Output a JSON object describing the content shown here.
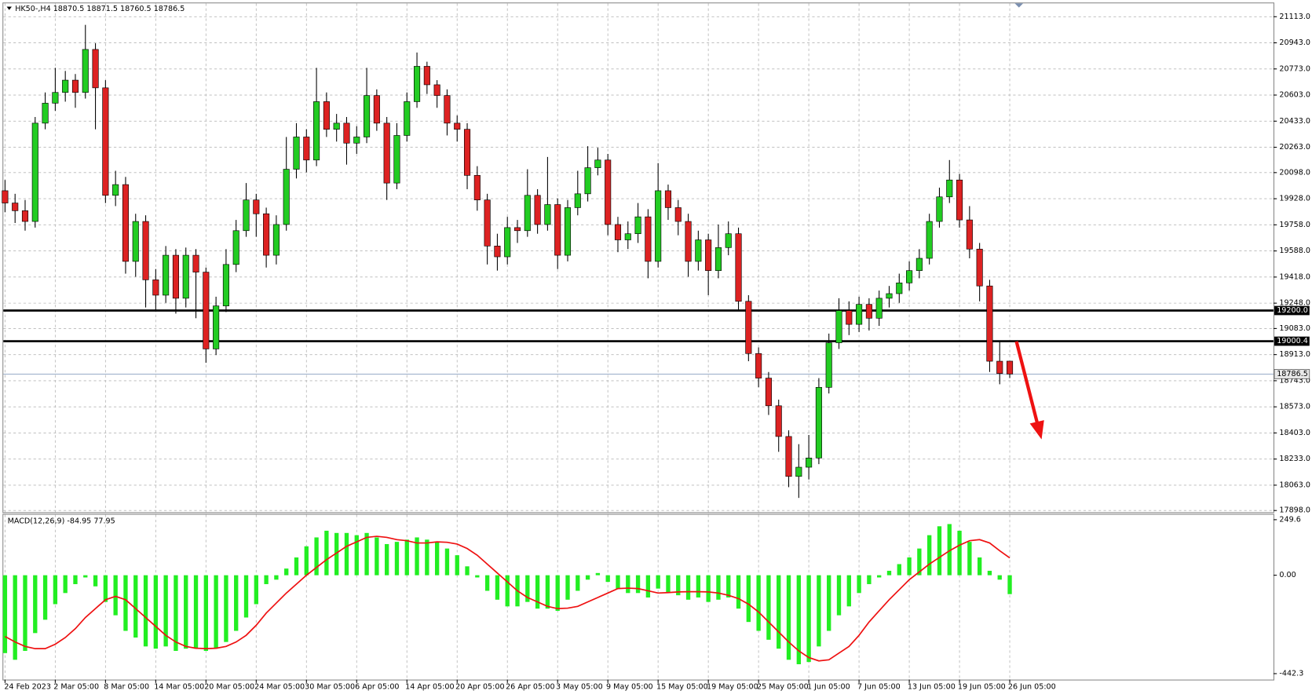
{
  "chart_data": [
    {
      "type": "candlestick",
      "title": "HK50-,H4  18870.5 18871.5 18760.5 18786.5",
      "categories": [
        "24 Feb 2023",
        null,
        null,
        null,
        null,
        "2 Mar 05:00",
        null,
        null,
        null,
        null,
        "8 Mar 05:00",
        null,
        null,
        null,
        null,
        "14 Mar 05:00",
        null,
        null,
        null,
        null,
        "20 Mar 05:00",
        null,
        null,
        null,
        null,
        "24 Mar 05:00",
        null,
        null,
        null,
        null,
        "30 Mar 05:00",
        null,
        null,
        null,
        null,
        "6 Apr 05:00",
        null,
        null,
        null,
        null,
        "14 Apr 05:00",
        null,
        null,
        null,
        null,
        "20 Apr 05:00",
        null,
        null,
        null,
        null,
        "26 Apr 05:00",
        null,
        null,
        null,
        null,
        "3 May 05:00",
        null,
        null,
        null,
        null,
        "9 May 05:00",
        null,
        null,
        null,
        null,
        "15 May 05:00",
        null,
        null,
        null,
        null,
        "19 May 05:00",
        null,
        null,
        null,
        null,
        "25 May 05:00",
        null,
        null,
        null,
        null,
        "1 Jun 05:00",
        null,
        null,
        null,
        null,
        "7 Jun 05:00",
        null,
        null,
        null,
        null,
        "13 Jun 05:00",
        null,
        null,
        null,
        null,
        "19 Jun 05:00",
        null,
        null,
        null,
        null,
        "26 Jun 05:00"
      ],
      "open": [
        19980,
        19900,
        19850,
        19780,
        20420,
        20550,
        20620,
        20700,
        20620,
        20900,
        20650,
        19950,
        20020,
        19520,
        19780,
        19400,
        19300,
        19560,
        19280,
        19560,
        19450,
        18950,
        19230,
        19500,
        19720,
        19920,
        19830,
        19560,
        19760,
        20120,
        20330,
        20180,
        20560,
        20380,
        20420,
        20290,
        20330,
        20600,
        20420,
        20030,
        20340,
        20560,
        20790,
        20670,
        20600,
        20420,
        20380,
        20080,
        19920,
        19620,
        19550,
        19740,
        19720,
        19950,
        19760,
        19890,
        19560,
        19870,
        19960,
        20130,
        20180,
        19760,
        19660,
        19700,
        19810,
        19520,
        19980,
        19870,
        19780,
        19520,
        19660,
        19460,
        19610,
        19700,
        19260,
        18920,
        18760,
        18580,
        18380,
        18120,
        18180,
        18240,
        18700,
        18990,
        19200,
        19110,
        19240,
        19150,
        19280,
        19310,
        19380,
        19460,
        19540,
        19780,
        19940,
        20050,
        19790,
        19600,
        19360,
        18870,
        18870.5
      ],
      "high": [
        20050,
        19960,
        19920,
        20460,
        20620,
        20780,
        20760,
        20740,
        21060,
        20940,
        20700,
        20110,
        20070,
        19830,
        19820,
        19470,
        19620,
        19600,
        19610,
        19600,
        19480,
        19290,
        19600,
        19790,
        20030,
        19960,
        19870,
        19820,
        20330,
        20420,
        20380,
        20780,
        20620,
        20480,
        20460,
        20400,
        20780,
        20640,
        20460,
        20420,
        20620,
        20880,
        20820,
        20700,
        20640,
        20470,
        20420,
        20140,
        19960,
        19700,
        19810,
        19790,
        20120,
        19990,
        20200,
        19930,
        19920,
        20110,
        20270,
        20260,
        20220,
        19810,
        19780,
        19900,
        19860,
        20160,
        20020,
        19920,
        19830,
        19720,
        19700,
        19760,
        19780,
        19740,
        19300,
        18960,
        18800,
        18620,
        18420,
        18330,
        18390,
        18760,
        19050,
        19280,
        19260,
        19290,
        19280,
        19330,
        19360,
        19440,
        19520,
        19600,
        19830,
        20000,
        20180,
        20090,
        19880,
        19640,
        19400,
        19000,
        18871.5
      ],
      "low": [
        19840,
        19770,
        19720,
        19740,
        20380,
        20500,
        20560,
        20520,
        20580,
        20380,
        19900,
        19880,
        19440,
        19420,
        19220,
        19200,
        19250,
        19180,
        19220,
        19150,
        18860,
        18910,
        19190,
        19450,
        19680,
        19680,
        19480,
        19500,
        19720,
        20060,
        20100,
        20140,
        20330,
        20300,
        20150,
        20220,
        20290,
        20370,
        19920,
        19990,
        20300,
        20520,
        20610,
        20520,
        20340,
        20300,
        19990,
        19850,
        19500,
        19460,
        19500,
        19640,
        19680,
        19700,
        19720,
        19470,
        19520,
        19820,
        19910,
        20080,
        19690,
        19580,
        19600,
        19640,
        19410,
        19480,
        19790,
        19690,
        19420,
        19460,
        19300,
        19410,
        19560,
        19200,
        18870,
        18700,
        18520,
        18280,
        18050,
        17980,
        18100,
        18200,
        18660,
        18950,
        19040,
        19060,
        19070,
        19100,
        19220,
        19250,
        19330,
        19410,
        19500,
        19740,
        19900,
        19740,
        19540,
        19260,
        18800,
        18720,
        18760.5
      ],
      "close": [
        19900,
        19850,
        19780,
        20420,
        20550,
        20620,
        20700,
        20620,
        20900,
        20650,
        19950,
        20020,
        19520,
        19780,
        19400,
        19300,
        19560,
        19280,
        19560,
        19450,
        18950,
        19230,
        19500,
        19720,
        19920,
        19830,
        19560,
        19760,
        20120,
        20330,
        20180,
        20560,
        20380,
        20420,
        20290,
        20330,
        20600,
        20420,
        20030,
        20340,
        20560,
        20790,
        20670,
        20600,
        20420,
        20380,
        20080,
        19920,
        19620,
        19550,
        19740,
        19720,
        19950,
        19760,
        19890,
        19560,
        19870,
        19960,
        20130,
        20180,
        19760,
        19660,
        19700,
        19810,
        19520,
        19980,
        19870,
        19780,
        19520,
        19660,
        19460,
        19610,
        19700,
        19260,
        18920,
        18760,
        18580,
        18380,
        18120,
        18180,
        18240,
        18700,
        18990,
        19200,
        19110,
        19240,
        19150,
        19280,
        19310,
        19380,
        19460,
        19540,
        19780,
        19940,
        20050,
        19790,
        19600,
        19360,
        18870,
        18790,
        18786.5
      ],
      "up_color": "#22cc22",
      "down_color": "#dd2222",
      "ylim": [
        17887,
        21200
      ],
      "yticks": [
        {
          "value": 21113,
          "label": "21113.0"
        },
        {
          "value": 20943,
          "label": "20943.0"
        },
        {
          "value": 20773,
          "label": "20773.0"
        },
        {
          "value": 20603,
          "label": "20603.0"
        },
        {
          "value": 20433,
          "label": "20433.0"
        },
        {
          "value": 20263,
          "label": "20263.0"
        },
        {
          "value": 20098,
          "label": "20098.0"
        },
        {
          "value": 19928,
          "label": "19928.0"
        },
        {
          "value": 19758,
          "label": "19758.0"
        },
        {
          "value": 19588,
          "label": "19588.0"
        },
        {
          "value": 19418,
          "label": "19418.0"
        },
        {
          "value": 19248,
          "label": "19248.0"
        },
        {
          "value": 19083,
          "label": "19083.0"
        },
        {
          "value": 18913,
          "label": "18913.0"
        },
        {
          "value": 18743,
          "label": "18743.0"
        },
        {
          "value": 18573,
          "label": "18573.0"
        },
        {
          "value": 18403,
          "label": "18403.0"
        },
        {
          "value": 18233,
          "label": "18233.0"
        },
        {
          "value": 18063,
          "label": "18063.0"
        },
        {
          "value": 17898,
          "label": "17898.0"
        }
      ],
      "grid": true,
      "levels": [
        {
          "value": 19200,
          "label": "19200.0"
        },
        {
          "value": 19000.4,
          "label": "19000.4"
        }
      ],
      "last_price": 18786.5
    },
    {
      "type": "macd",
      "title": "MACD(12,26,9) -84.95 77.95",
      "histogram": {
        "color": "#22ee22",
        "values": [
          -350,
          -380,
          -340,
          -260,
          -200,
          -130,
          -80,
          -40,
          -10,
          -50,
          -120,
          -180,
          -250,
          -280,
          -320,
          -330,
          -320,
          -340,
          -330,
          -330,
          -340,
          -330,
          -300,
          -250,
          -190,
          -130,
          -40,
          -20,
          30,
          80,
          130,
          170,
          200,
          190,
          190,
          180,
          190,
          170,
          140,
          150,
          160,
          170,
          160,
          150,
          120,
          90,
          40,
          -10,
          -70,
          -110,
          -140,
          -140,
          -120,
          -150,
          -150,
          -160,
          -110,
          -70,
          -20,
          10,
          -30,
          -60,
          -80,
          -80,
          -100,
          -60,
          -80,
          -90,
          -110,
          -100,
          -120,
          -110,
          -100,
          -150,
          -210,
          -250,
          -290,
          -330,
          -380,
          -400,
          -390,
          -320,
          -250,
          -180,
          -140,
          -80,
          -40,
          -10,
          20,
          50,
          80,
          120,
          180,
          220,
          230,
          200,
          150,
          80,
          20,
          -20,
          -84.95
        ]
      },
      "signal": {
        "color": "#ee1111",
        "values": [
          -275,
          -300,
          -320,
          -330,
          -330,
          -310,
          -280,
          -240,
          -190,
          -150,
          -110,
          -95,
          -110,
          -150,
          -190,
          -230,
          -270,
          -300,
          -320,
          -328,
          -330,
          -328,
          -320,
          -300,
          -270,
          -225,
          -170,
          -125,
          -80,
          -40,
          0,
          35,
          70,
          100,
          130,
          150,
          170,
          175,
          170,
          160,
          155,
          145,
          145,
          150,
          148,
          140,
          120,
          90,
          50,
          10,
          -30,
          -70,
          -100,
          -120,
          -140,
          -150,
          -148,
          -140,
          -120,
          -100,
          -80,
          -60,
          -58,
          -60,
          -70,
          -80,
          -78,
          -75,
          -74,
          -74,
          -75,
          -80,
          -90,
          -105,
          -130,
          -165,
          -210,
          -255,
          -300,
          -340,
          -370,
          -385,
          -380,
          -350,
          -320,
          -270,
          -210,
          -160,
          -110,
          -65,
          -20,
          15,
          50,
          80,
          110,
          135,
          155,
          160,
          145,
          110,
          77.95
        ]
      },
      "ylim": [
        -469,
        272
      ],
      "yticks": [
        249.6,
        {
          "value": 0,
          "label": "0.00"
        },
        -442.3
      ]
    }
  ]
}
